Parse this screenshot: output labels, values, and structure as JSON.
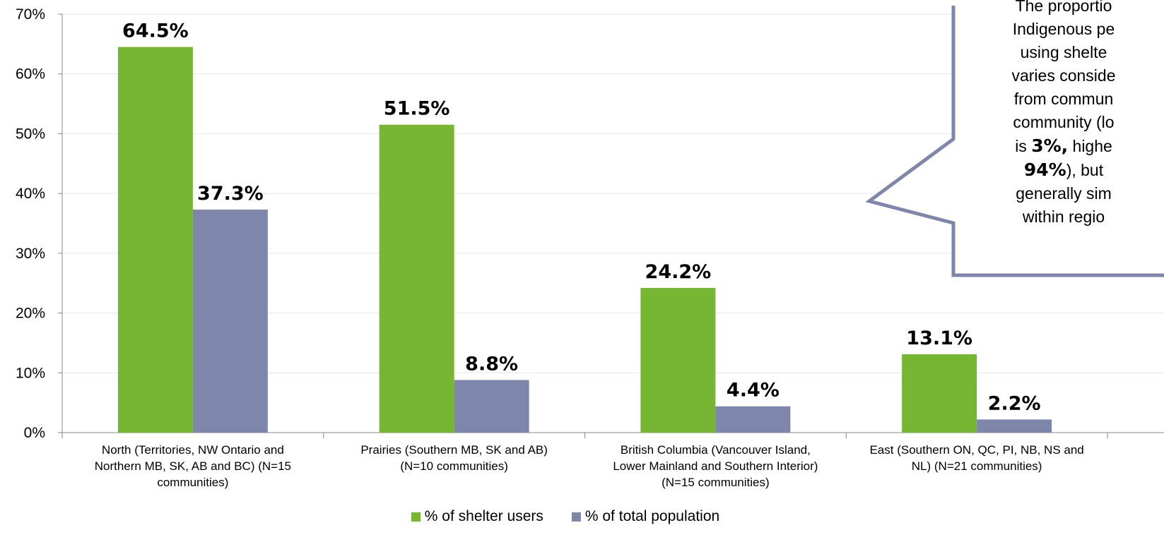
{
  "chart_data": {
    "type": "bar",
    "categories": [
      [
        "North (Territories, NW Ontario and",
        "Northern MB, SK, AB and BC) (N=15",
        "communities)"
      ],
      [
        "Prairies (Southern MB, SK and AB)",
        "(N=10 communities)"
      ],
      [
        "British Columbia (Vancouver Island,",
        "Lower Mainland and Southern Interior)",
        "(N=15 communities)"
      ],
      [
        "East (Southern ON, QC, PI, NB, NS and",
        "NL) (N=21 communities)"
      ]
    ],
    "series": [
      {
        "name": "% of shelter users",
        "color": "#77b633",
        "values": [
          64.5,
          51.5,
          24.2,
          13.1
        ],
        "labels": [
          "64.5%",
          "51.5%",
          "24.2%",
          "13.1%"
        ]
      },
      {
        "name": "% of total population",
        "color": "#7f86ac",
        "values": [
          37.3,
          8.8,
          4.4,
          2.2
        ],
        "labels": [
          "37.3%",
          "8.8%",
          "4.4%",
          "2.2%"
        ]
      }
    ],
    "ylim": [
      0,
      70
    ],
    "yticks": [
      "0%",
      "10%",
      "20%",
      "30%",
      "40%",
      "50%",
      "60%",
      "70%"
    ],
    "grid": true,
    "legend_position": "bottom",
    "title": "",
    "xlabel": "",
    "ylabel": ""
  },
  "callout": {
    "line1": "The proportio",
    "line2": "Indigenous pe",
    "line3": "using shelte",
    "line4": "varies conside",
    "line5": "from commun",
    "line6": "community (lo",
    "line7_pre": "is ",
    "line7_bold": "3%,",
    "line7_post": " highe",
    "line8_bold": "94%",
    "line8_post": "), but",
    "line9": "generally sim",
    "line10": "within regio",
    "border_color": "#7f86ac"
  }
}
